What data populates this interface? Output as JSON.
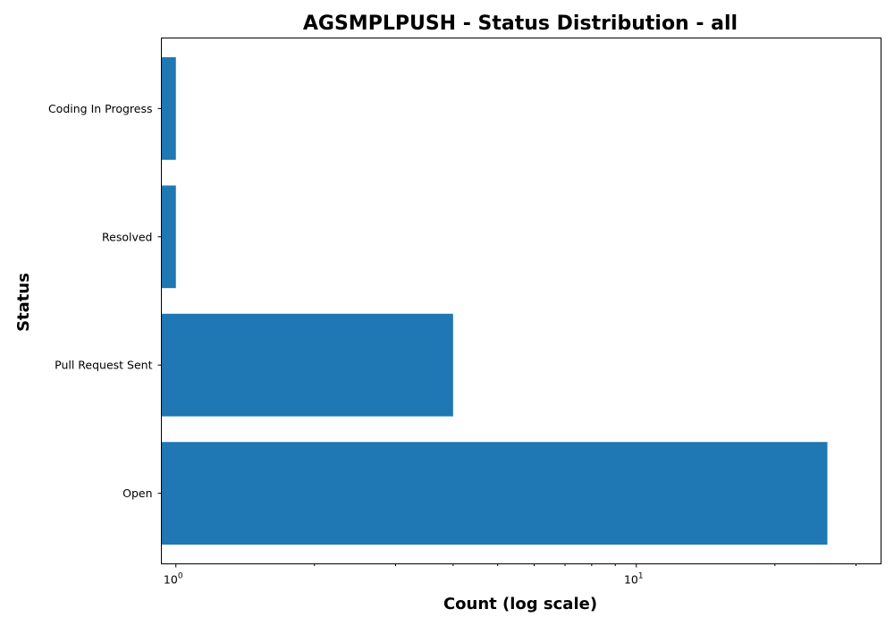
{
  "chart_data": {
    "type": "bar",
    "orientation": "horizontal",
    "title": "AGSMPLPUSH - Status Distribution - all",
    "xlabel": "Count (log scale)",
    "ylabel": "Status",
    "xscale": "log",
    "xlim": [
      0.93,
      34
    ],
    "major_ticks": [
      {
        "value": 1,
        "base": "10",
        "exp": "0"
      },
      {
        "value": 10,
        "base": "10",
        "exp": "1"
      }
    ],
    "minor_ticks": [
      2,
      3,
      4,
      5,
      6,
      7,
      8,
      9,
      20,
      30
    ],
    "categories": [
      "Coding In Progress",
      "Resolved",
      "Pull Request Sent",
      "Open"
    ],
    "values": [
      1,
      1,
      4,
      26
    ],
    "bar_color": "#1f77b4",
    "grid": false,
    "legend": "none"
  }
}
